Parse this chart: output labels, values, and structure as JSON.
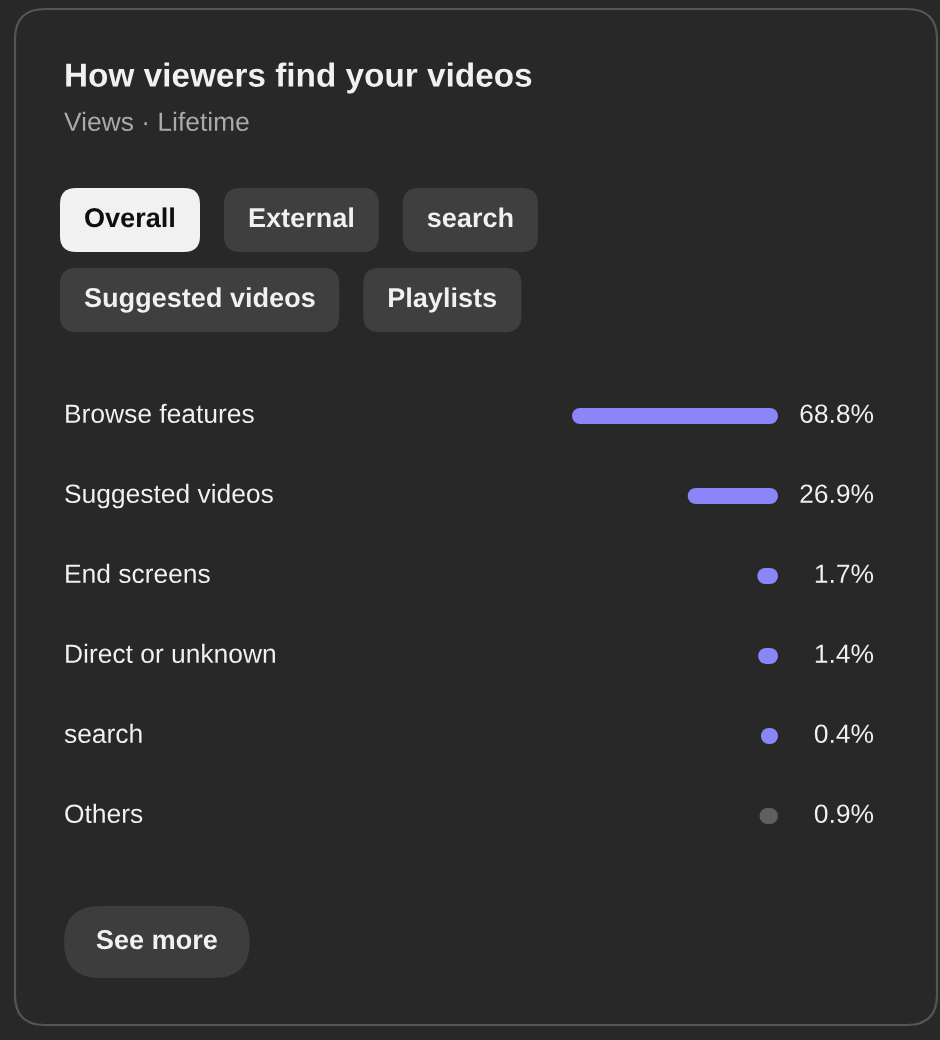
{
  "chart_data": {
    "type": "bar",
    "orientation": "horizontal",
    "title": "How viewers find your videos",
    "subtitle": "Views · Lifetime",
    "categories": [
      "Browse features",
      "Suggested videos",
      "End screens",
      "Direct or unknown",
      "search",
      "Others"
    ],
    "values": [
      68.8,
      26.9,
      1.7,
      1.4,
      0.4,
      0.9
    ],
    "colors": [
      "#8b85f7",
      "#8b85f7",
      "#8b85f7",
      "#8b85f7",
      "#8b85f7",
      "#5f5f5f"
    ],
    "value_labels": [
      "68.8%",
      "26.9%",
      "1.7%",
      "1.4%",
      "0.4%",
      "0.9%"
    ],
    "annotations": [
      "Overall",
      "External",
      "search",
      "Suggested videos",
      "Playlists",
      "See more"
    ]
  }
}
